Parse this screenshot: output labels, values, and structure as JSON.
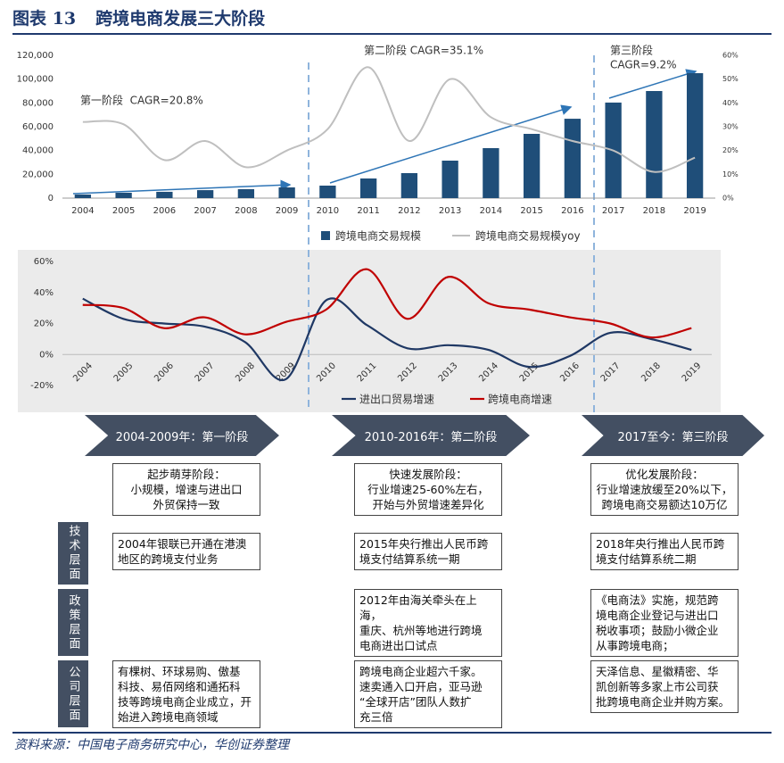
{
  "header": {
    "figure_label": "图表 13",
    "title": "跨境电商发展三大阶段"
  },
  "chart_data": [
    {
      "type": "bar",
      "categories": [
        "2004",
        "2005",
        "2006",
        "2007",
        "2008",
        "2009",
        "2010",
        "2011",
        "2012",
        "2013",
        "2014",
        "2015",
        "2016",
        "2017",
        "2018",
        "2019"
      ],
      "series": [
        {
          "name": "跨境电商交易规模",
          "type": "bar",
          "color": "#1f4e79",
          "values": [
            3000,
            4500,
            5300,
            6700,
            7500,
            9000,
            10500,
            16500,
            21000,
            31500,
            42000,
            54000,
            66700,
            80300,
            90000,
            105000
          ]
        },
        {
          "name": "跨境电商交易规模yoy",
          "type": "line",
          "axis": "y2",
          "color": "#bfbfbf",
          "values": [
            32,
            31,
            16,
            24,
            13,
            20,
            29,
            55,
            24,
            50,
            34,
            29,
            24,
            20,
            11,
            17
          ]
        }
      ],
      "ylim": [
        0,
        120000
      ],
      "yticks": [
        0,
        {
          "value": 20000,
          "label": "20,000"
        },
        {
          "value": 40000,
          "label": "40,000"
        },
        {
          "value": 60000,
          "label": "60,000"
        },
        {
          "value": 80000,
          "label": "80,000"
        },
        {
          "value": 100000,
          "label": "100,000"
        },
        {
          "value": 120000,
          "label": "120,000"
        }
      ],
      "y2lim": [
        0,
        60
      ],
      "y2ticks": [
        {
          "value": 0,
          "label": "0%"
        },
        {
          "value": 10,
          "label": "10%"
        },
        {
          "value": 20,
          "label": "20%"
        },
        {
          "value": 30,
          "label": "30%"
        },
        {
          "value": 40,
          "label": "40%"
        },
        {
          "value": 50,
          "label": "50%"
        },
        {
          "value": 60,
          "label": "60%"
        }
      ],
      "annotations": [
        "第一阶段  CAGR=20.8%",
        "第二阶段 CAGR=35.1%",
        "第三阶段",
        "CAGR=9.2%"
      ],
      "legend": "bottom",
      "grid": false
    },
    {
      "type": "line",
      "categories": [
        "2004",
        "2005",
        "2006",
        "2007",
        "2008",
        "2009",
        "2010",
        "2011",
        "2012",
        "2013",
        "2014",
        "2015",
        "2016",
        "2017",
        "2018",
        "2019"
      ],
      "series": [
        {
          "name": "进出口贸易增速",
          "color": "#1f3864",
          "values": [
            36,
            23,
            20,
            18,
            8,
            -16,
            35,
            19,
            4,
            6,
            3,
            -8,
            -1,
            14,
            10,
            3
          ]
        },
        {
          "name": "跨境电商增速",
          "color": "#c00000",
          "values": [
            32,
            30,
            17,
            24,
            13,
            21,
            29,
            55,
            23,
            50,
            33,
            29,
            24,
            20,
            11,
            17
          ]
        }
      ],
      "ylim": [
        -20,
        60
      ],
      "yticks": [
        {
          "value": -20,
          "label": "-20%"
        },
        {
          "value": 0,
          "label": "0%"
        },
        {
          "value": 20,
          "label": "20%"
        },
        {
          "value": 40,
          "label": "40%"
        },
        {
          "value": 60,
          "label": "60%"
        }
      ],
      "legend": "bottom",
      "grid": false
    }
  ],
  "row_labels": [
    "技术层面",
    "政策层面",
    "公司层面"
  ],
  "stages": [
    {
      "title": "2004-2009年：第一阶段",
      "summary": [
        "起步萌芽阶段：",
        "小规模，增速与进出口",
        "外贸保持一致"
      ],
      "tech": [
        "2004年银联已开通在港澳",
        "地区的跨境支付业务"
      ],
      "company": [
        "有棵树、环球易购、傲基",
        "科技、易佰网络和通拓科",
        "技等跨境电商企业成立，开",
        "始进入跨境电商领域"
      ]
    },
    {
      "title": "2010-2016年：第二阶段",
      "summary": [
        "快速发展阶段：",
        "行业增速25-60%左右，",
        "开始与外贸增速差异化"
      ],
      "tech": [
        "2015年央行推出人民币跨",
        "境支付结算系统一期"
      ],
      "policy": [
        "2012年由海关牵头在上海，",
        "重庆、杭州等地进行跨境",
        "电商进出口试点"
      ],
      "company": [
        "跨境电商企业超六千家。",
        "速卖通入口开启，亚马逊",
        "“全球开店”团队人数扩",
        "充三倍"
      ]
    },
    {
      "title": "2017至今：第三阶段",
      "summary": [
        "优化发展阶段：",
        "行业增速放缓至20%以下，",
        "跨境电商交易额达10万亿"
      ],
      "tech": [
        "2018年央行推出人民币跨",
        "境支付结算系统二期"
      ],
      "policy": [
        "《电商法》实施，规范跨",
        "境电商企业登记与进出口",
        "税收事项；鼓励小微企业",
        "从事跨境电商；"
      ],
      "company": [
        "天泽信息、星徽精密、华",
        "凯创新等多家上市公司获",
        "批跨境电商企业并购方案。"
      ]
    }
  ],
  "source": "资料来源：中国电子商务研究中心，华创证券整理"
}
